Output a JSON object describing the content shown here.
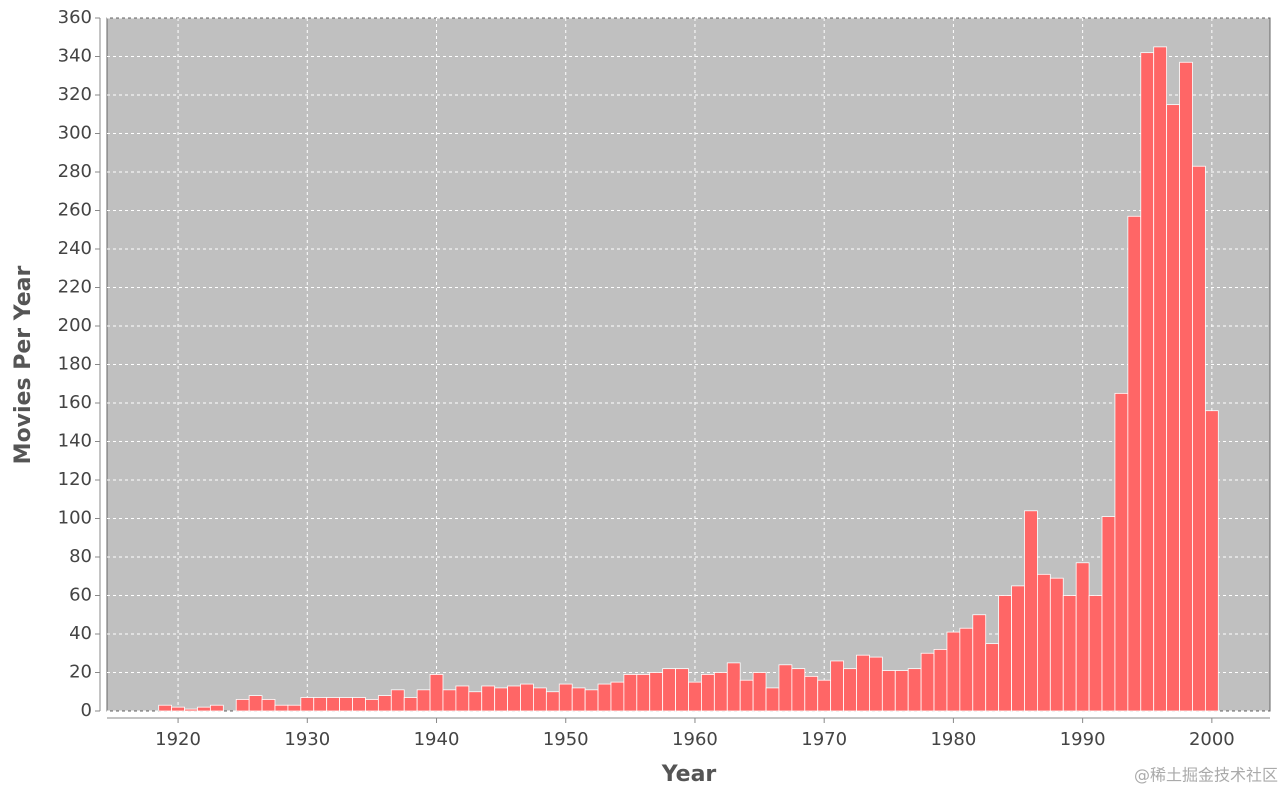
{
  "chart_data": {
    "type": "bar",
    "x_label": "Year",
    "y_label": "Movies Per Year",
    "watermark": "@稀土掘金技术社区",
    "x": [
      1919,
      1920,
      1921,
      1922,
      1923,
      1924,
      1925,
      1926,
      1927,
      1928,
      1929,
      1930,
      1931,
      1932,
      1933,
      1934,
      1935,
      1936,
      1937,
      1938,
      1939,
      1940,
      1941,
      1942,
      1943,
      1944,
      1945,
      1946,
      1947,
      1948,
      1949,
      1950,
      1951,
      1952,
      1953,
      1954,
      1955,
      1956,
      1957,
      1958,
      1959,
      1960,
      1961,
      1962,
      1963,
      1964,
      1965,
      1966,
      1967,
      1968,
      1969,
      1970,
      1971,
      1972,
      1973,
      1974,
      1975,
      1976,
      1977,
      1978,
      1979,
      1980,
      1981,
      1982,
      1983,
      1984,
      1985,
      1986,
      1987,
      1988,
      1989,
      1990,
      1991,
      1992,
      1993,
      1994,
      1995,
      1996,
      1997,
      1998,
      1999,
      2000
    ],
    "values": [
      3,
      2,
      1,
      2,
      3,
      0,
      6,
      8,
      6,
      3,
      3,
      7,
      7,
      7,
      7,
      7,
      6,
      8,
      11,
      7,
      11,
      19,
      11,
      13,
      10,
      13,
      12,
      13,
      14,
      12,
      10,
      14,
      12,
      11,
      14,
      15,
      19,
      19,
      20,
      22,
      22,
      15,
      19,
      20,
      25,
      16,
      20,
      12,
      24,
      22,
      18,
      16,
      26,
      22,
      29,
      28,
      21,
      21,
      22,
      30,
      32,
      41,
      43,
      50,
      35,
      60,
      65,
      104,
      71,
      69,
      60,
      77,
      60,
      101,
      165,
      257,
      342,
      345,
      315,
      337,
      283,
      156
    ],
    "color": "#ff6666",
    "plot_background": "#c0c0c0",
    "grid": true,
    "xlim": [
      1914.5,
      2004.5
    ],
    "xticks": [
      1920,
      1930,
      1940,
      1950,
      1960,
      1970,
      1980,
      1990,
      2000
    ],
    "ylim": [
      0,
      360
    ],
    "yticks": [
      0,
      20,
      40,
      60,
      80,
      100,
      120,
      140,
      160,
      180,
      200,
      220,
      240,
      260,
      280,
      300,
      320,
      340,
      360
    ]
  }
}
